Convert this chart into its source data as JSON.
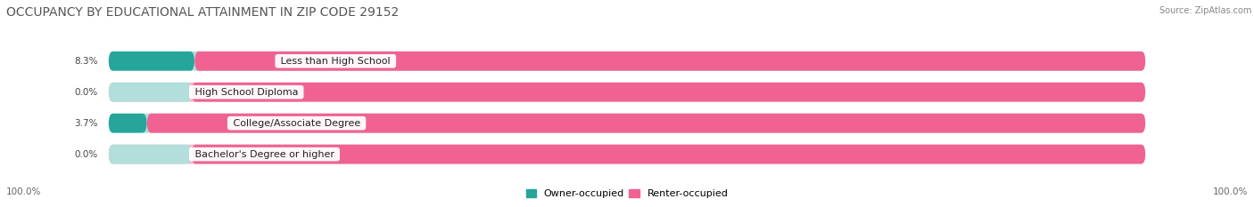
{
  "title": "OCCUPANCY BY EDUCATIONAL ATTAINMENT IN ZIP CODE 29152",
  "source": "Source: ZipAtlas.com",
  "categories": [
    "Less than High School",
    "High School Diploma",
    "College/Associate Degree",
    "Bachelor's Degree or higher"
  ],
  "owner_values": [
    8.3,
    0.0,
    3.7,
    0.0
  ],
  "renter_values": [
    91.7,
    100.0,
    96.3,
    100.0
  ],
  "owner_color": "#26a69a",
  "renter_color": "#f06292",
  "owner_light_color": "#b2dfdb",
  "renter_light_color": "#f8bbd0",
  "bar_bg_color": "#e8e8e8",
  "background_color": "#ffffff",
  "title_fontsize": 10,
  "label_fontsize": 8,
  "value_fontsize": 7.5,
  "legend_fontsize": 8,
  "bar_height": 0.62,
  "figsize": [
    14.06,
    2.33
  ]
}
